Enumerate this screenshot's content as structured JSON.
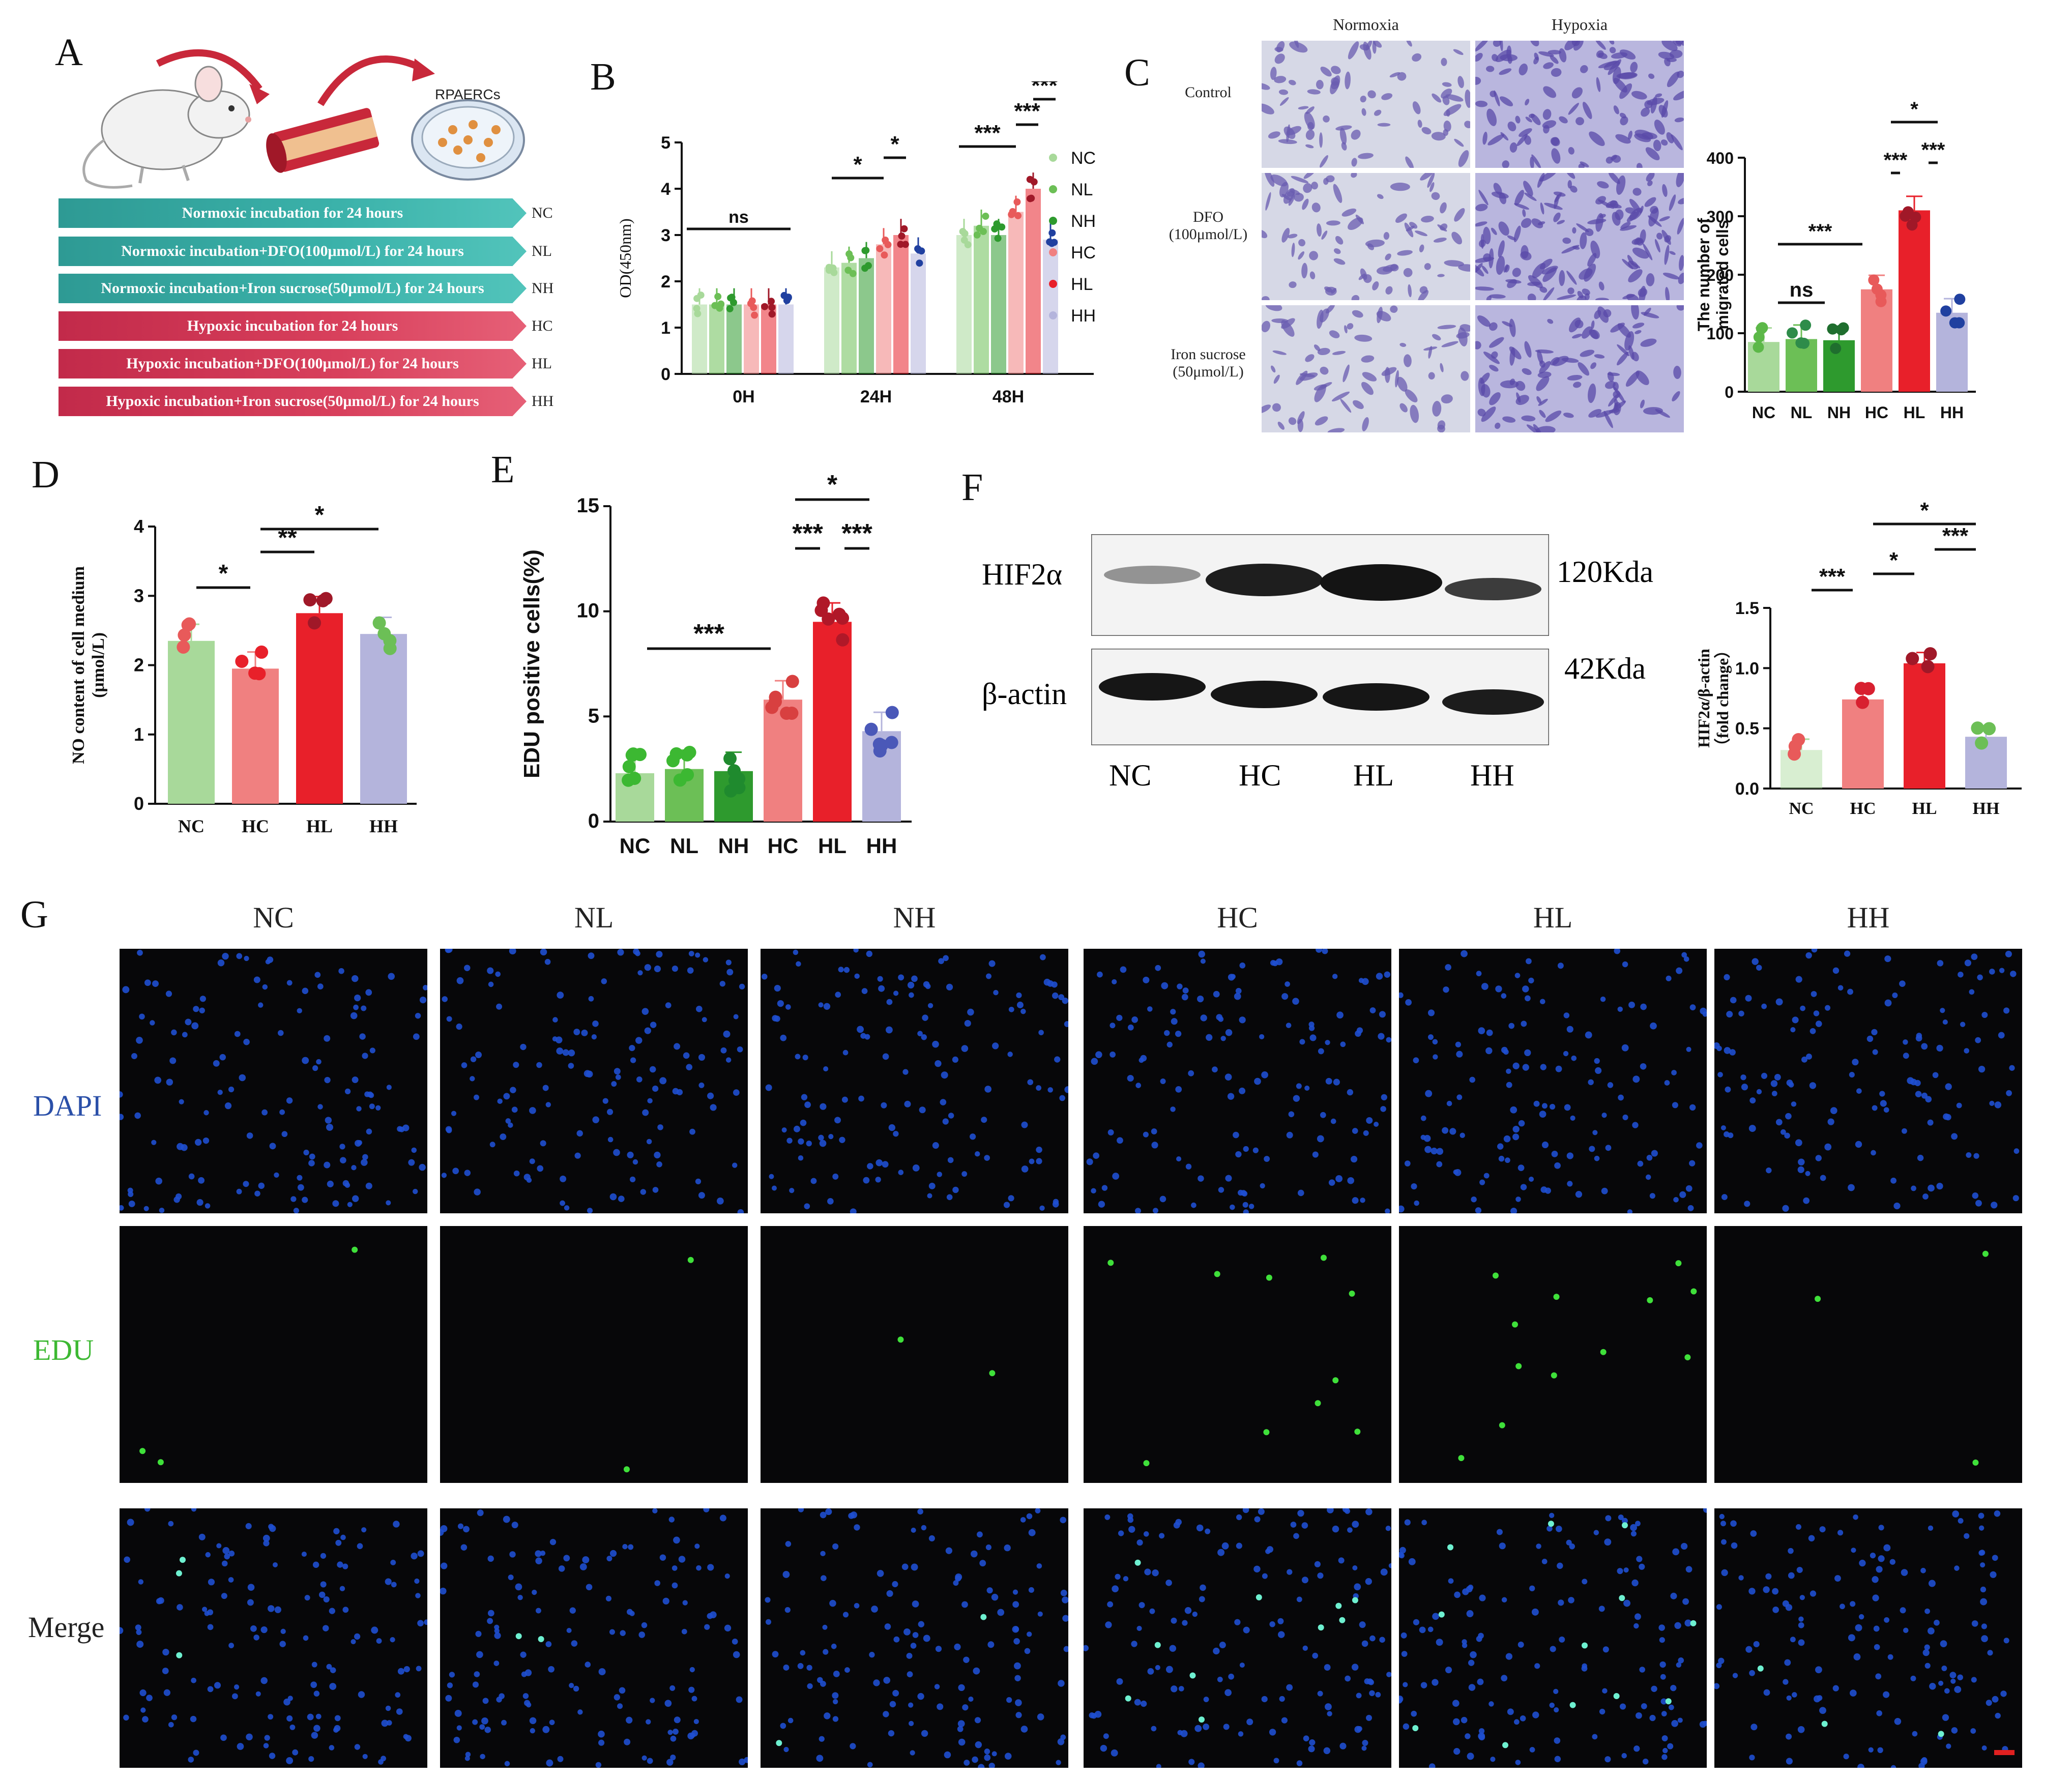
{
  "panels": {
    "A": "A",
    "B": "B",
    "C": "C",
    "D": "D",
    "E": "E",
    "F": "F",
    "G": "G"
  },
  "panelA": {
    "title": "RPAERCs",
    "banners": [
      {
        "text": "Normoxic incubation for 24 hours",
        "code": "NC",
        "color": "teal"
      },
      {
        "text": "Normoxic incubation+DFO(100μmol/L) for 24 hours",
        "code": "NL",
        "color": "teal"
      },
      {
        "text": "Normoxic incubation+Iron sucrose(50μmol/L) for 24 hours",
        "code": "NH",
        "color": "teal"
      },
      {
        "text": "Hypoxic incubation for 24 hours",
        "code": "HC",
        "color": "red"
      },
      {
        "text": "Hypoxic incubation+DFO(100μmol/L) for 24 hours",
        "code": "HL",
        "color": "red"
      },
      {
        "text": "Hypoxic incubation+Iron sucrose(50μmol/L) for 24 hours",
        "code": "HH",
        "color": "red"
      }
    ]
  },
  "colors": {
    "NC": "#a8d99a",
    "NL": "#6cbf56",
    "NH": "#2e9a2e",
    "HC": "#f08080",
    "HL": "#e8202a",
    "HH": "#b4b4dc",
    "HC_dot": "#e85a5a",
    "HL_dot": "#a01828",
    "HH_dot": "#2040a0"
  },
  "panelC_images": {
    "col_titles": [
      "Normoxia",
      "Hypoxia"
    ],
    "row_labels": [
      "Control",
      "DFO (100μmol/L)",
      "Iron sucrose (50μmol/L)"
    ]
  },
  "panelF_blot": {
    "bands": [
      {
        "name": "HIF2α",
        "size": "120Kda"
      },
      {
        "name": "β-actin",
        "size": "42Kda"
      }
    ],
    "lanes": [
      "NC",
      "HC",
      "HL",
      "HH"
    ]
  },
  "panelG": {
    "col_titles": [
      "NC",
      "NL",
      "NH",
      "HC",
      "HL",
      "HH"
    ],
    "row_labels": [
      {
        "text": "DAPI",
        "color": "#2a4fa8"
      },
      {
        "text": "EDU",
        "color": "#3cb832"
      },
      {
        "text": "Merge",
        "color": "#222222"
      }
    ]
  },
  "chart_data": [
    {
      "panel": "B",
      "type": "bar",
      "ylabel": "OD(450nm)",
      "ylim": [
        0,
        5
      ],
      "yticks": [
        0,
        1,
        2,
        3,
        4,
        5
      ],
      "categories": [
        "0H",
        "24H",
        "48H"
      ],
      "series": [
        {
          "name": "NC",
          "values": [
            1.5,
            2.3,
            3.0
          ]
        },
        {
          "name": "NL",
          "values": [
            1.5,
            2.4,
            3.2
          ]
        },
        {
          "name": "NH",
          "values": [
            1.5,
            2.5,
            3.0
          ]
        },
        {
          "name": "HC",
          "values": [
            1.5,
            2.8,
            3.5
          ]
        },
        {
          "name": "HL",
          "values": [
            1.5,
            3.0,
            4.0
          ]
        },
        {
          "name": "HH",
          "values": [
            1.5,
            2.6,
            2.9
          ]
        }
      ],
      "sig": [
        {
          "label": "ns",
          "group": 0
        },
        {
          "label": "*",
          "group": 1,
          "pair": "NC-HC"
        },
        {
          "label": "*",
          "group": 1,
          "pair": "HC-HL"
        },
        {
          "label": "***",
          "group": 2,
          "pair": "NC-HC"
        },
        {
          "label": "***",
          "group": 2,
          "pair": "HC-HL"
        },
        {
          "label": "***",
          "group": 2,
          "pair": "HL-HH"
        }
      ]
    },
    {
      "panel": "C",
      "type": "bar",
      "ylabel": "The number of migrated cells",
      "ylim": [
        0,
        400
      ],
      "yticks": [
        0,
        100,
        200,
        300,
        400
      ],
      "categories": [
        "NC",
        "NL",
        "NH",
        "HC",
        "HL",
        "HH"
      ],
      "values": [
        85,
        90,
        88,
        175,
        310,
        135
      ],
      "sig": [
        {
          "label": "ns",
          "from": "NC",
          "to": "NH"
        },
        {
          "label": "***",
          "from": "NC",
          "to": "HC"
        },
        {
          "label": "***",
          "from": "HC",
          "to": "HL"
        },
        {
          "label": "***",
          "from": "HL",
          "to": "HH"
        },
        {
          "label": "*",
          "from": "HC",
          "to": "HH"
        }
      ]
    },
    {
      "panel": "D",
      "type": "bar",
      "ylabel": "NO content of cell medium (μmol/L)",
      "ylim": [
        0,
        4
      ],
      "yticks": [
        0,
        1,
        2,
        3,
        4
      ],
      "categories": [
        "NC",
        "HC",
        "HL",
        "HH"
      ],
      "values": [
        2.35,
        1.95,
        2.75,
        2.45
      ],
      "sig": [
        {
          "label": "*",
          "from": "NC",
          "to": "HC"
        },
        {
          "label": "**",
          "from": "HC",
          "to": "HL"
        },
        {
          "label": "*",
          "from": "HC",
          "to": "HH"
        }
      ]
    },
    {
      "panel": "E",
      "type": "bar",
      "ylabel": "EDU positive cells(%)",
      "ylim": [
        0,
        15
      ],
      "yticks": [
        0,
        5,
        10,
        15
      ],
      "categories": [
        "NC",
        "NL",
        "NH",
        "HC",
        "HL",
        "HH"
      ],
      "values": [
        2.3,
        2.5,
        2.4,
        5.8,
        9.5,
        4.3
      ],
      "sig": [
        {
          "label": "***",
          "from": "NC",
          "to": "HC"
        },
        {
          "label": "***",
          "from": "HC",
          "to": "HL"
        },
        {
          "label": "***",
          "from": "HL",
          "to": "HH"
        },
        {
          "label": "*",
          "from": "HC",
          "to": "HH"
        }
      ]
    },
    {
      "panel": "F",
      "type": "bar",
      "ylabel": "HIF2α/β-actin (fold change)",
      "ylim": [
        0,
        1.5
      ],
      "yticks": [
        "0.0",
        "0.5",
        "1.0",
        "1.5"
      ],
      "categories": [
        "NC",
        "HC",
        "HL",
        "HH"
      ],
      "values": [
        0.32,
        0.74,
        1.04,
        0.43
      ],
      "sig": [
        {
          "label": "***",
          "from": "NC",
          "to": "HC"
        },
        {
          "label": "*",
          "from": "HC",
          "to": "HL"
        },
        {
          "label": "***",
          "from": "HL",
          "to": "HH"
        },
        {
          "label": "*",
          "from": "HC",
          "to": "HH"
        }
      ]
    }
  ]
}
